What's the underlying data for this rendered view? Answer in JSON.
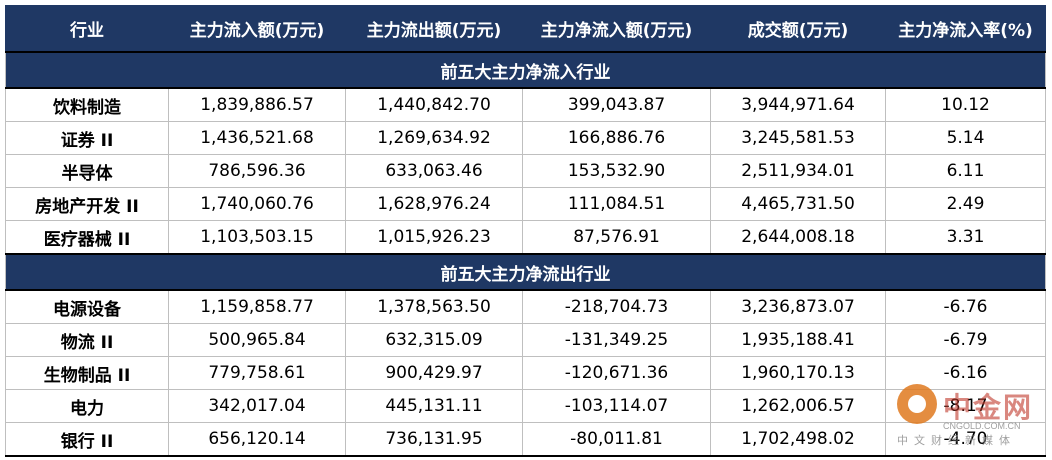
{
  "headers": [
    "行业",
    "主力流入额(万元)",
    "主力流出额(万元)",
    "主力净流入额(万元)",
    "成交额(万元)",
    "主力净流入率(%)"
  ],
  "sections": [
    {
      "title": "前五大主力净流入行业",
      "rows": [
        [
          "饮料制造",
          "1,839,886.57",
          "1,440,842.70",
          "399,043.87",
          "3,944,971.64",
          "10.12"
        ],
        [
          "证券 II",
          "1,436,521.68",
          "1,269,634.92",
          "166,886.76",
          "3,245,581.53",
          "5.14"
        ],
        [
          "半导体",
          "786,596.36",
          "633,063.46",
          "153,532.90",
          "2,511,934.01",
          "6.11"
        ],
        [
          "房地产开发 II",
          "1,740,060.76",
          "1,628,976.24",
          "111,084.51",
          "4,465,731.50",
          "2.49"
        ],
        [
          "医疗器械 II",
          "1,103,503.15",
          "1,015,926.23",
          "87,576.91",
          "2,644,008.18",
          "3.31"
        ]
      ]
    },
    {
      "title": "前五大主力净流出行业",
      "rows": [
        [
          "电源设备",
          "1,159,858.77",
          "1,378,563.50",
          "-218,704.73",
          "3,236,873.07",
          "-6.76"
        ],
        [
          "物流 II",
          "500,965.84",
          "632,315.09",
          "-131,349.25",
          "1,935,188.41",
          "-6.79"
        ],
        [
          "生物制品 II",
          "779,758.61",
          "900,429.97",
          "-120,671.36",
          "1,960,170.13",
          "-6.16"
        ],
        [
          "电力",
          "342,017.04",
          "445,131.11",
          "-103,114.07",
          "1,262,006.57",
          "-8.17"
        ],
        [
          "银行 II",
          "656,120.14",
          "736,131.95",
          "-80,011.81",
          "1,702,498.02",
          "-4.70"
        ]
      ]
    }
  ],
  "watermark": {
    "brand": "中金网",
    "url": "CNGOLD.COM.CN",
    "tagline": "中文财经新媒体"
  }
}
